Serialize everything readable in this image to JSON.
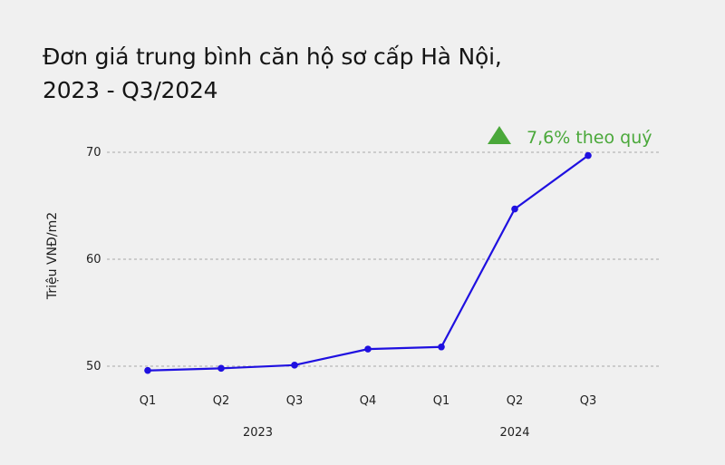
{
  "title_line1": "Đơn giá trung bình căn hộ sơ cấp Hà Nội,",
  "title_line2": "2023 - Q3/2024",
  "chart_data": {
    "type": "line",
    "title": "Đơn giá trung bình căn hộ sơ cấp Hà Nội, 2023 - Q3/2024",
    "ylabel": "Triệu VNĐ/m2",
    "xlabel": "",
    "ylim": [
      50,
      70
    ],
    "yticks": [
      50,
      60,
      70
    ],
    "categories": [
      "Q1",
      "Q2",
      "Q3",
      "Q4",
      "Q1",
      "Q2",
      "Q3"
    ],
    "year_groups": [
      {
        "label": "2023",
        "from": 0,
        "to": 3
      },
      {
        "label": "2024",
        "from": 4,
        "to": 6
      }
    ],
    "values": [
      49.6,
      49.8,
      50.1,
      51.6,
      51.8,
      64.7,
      69.7
    ],
    "grid": "horizontal dashed",
    "line_color": "#1f10e0",
    "annotation": {
      "text": "7,6% theo quý",
      "color": "#4aa83a",
      "icon": "triangle-up-icon"
    }
  }
}
